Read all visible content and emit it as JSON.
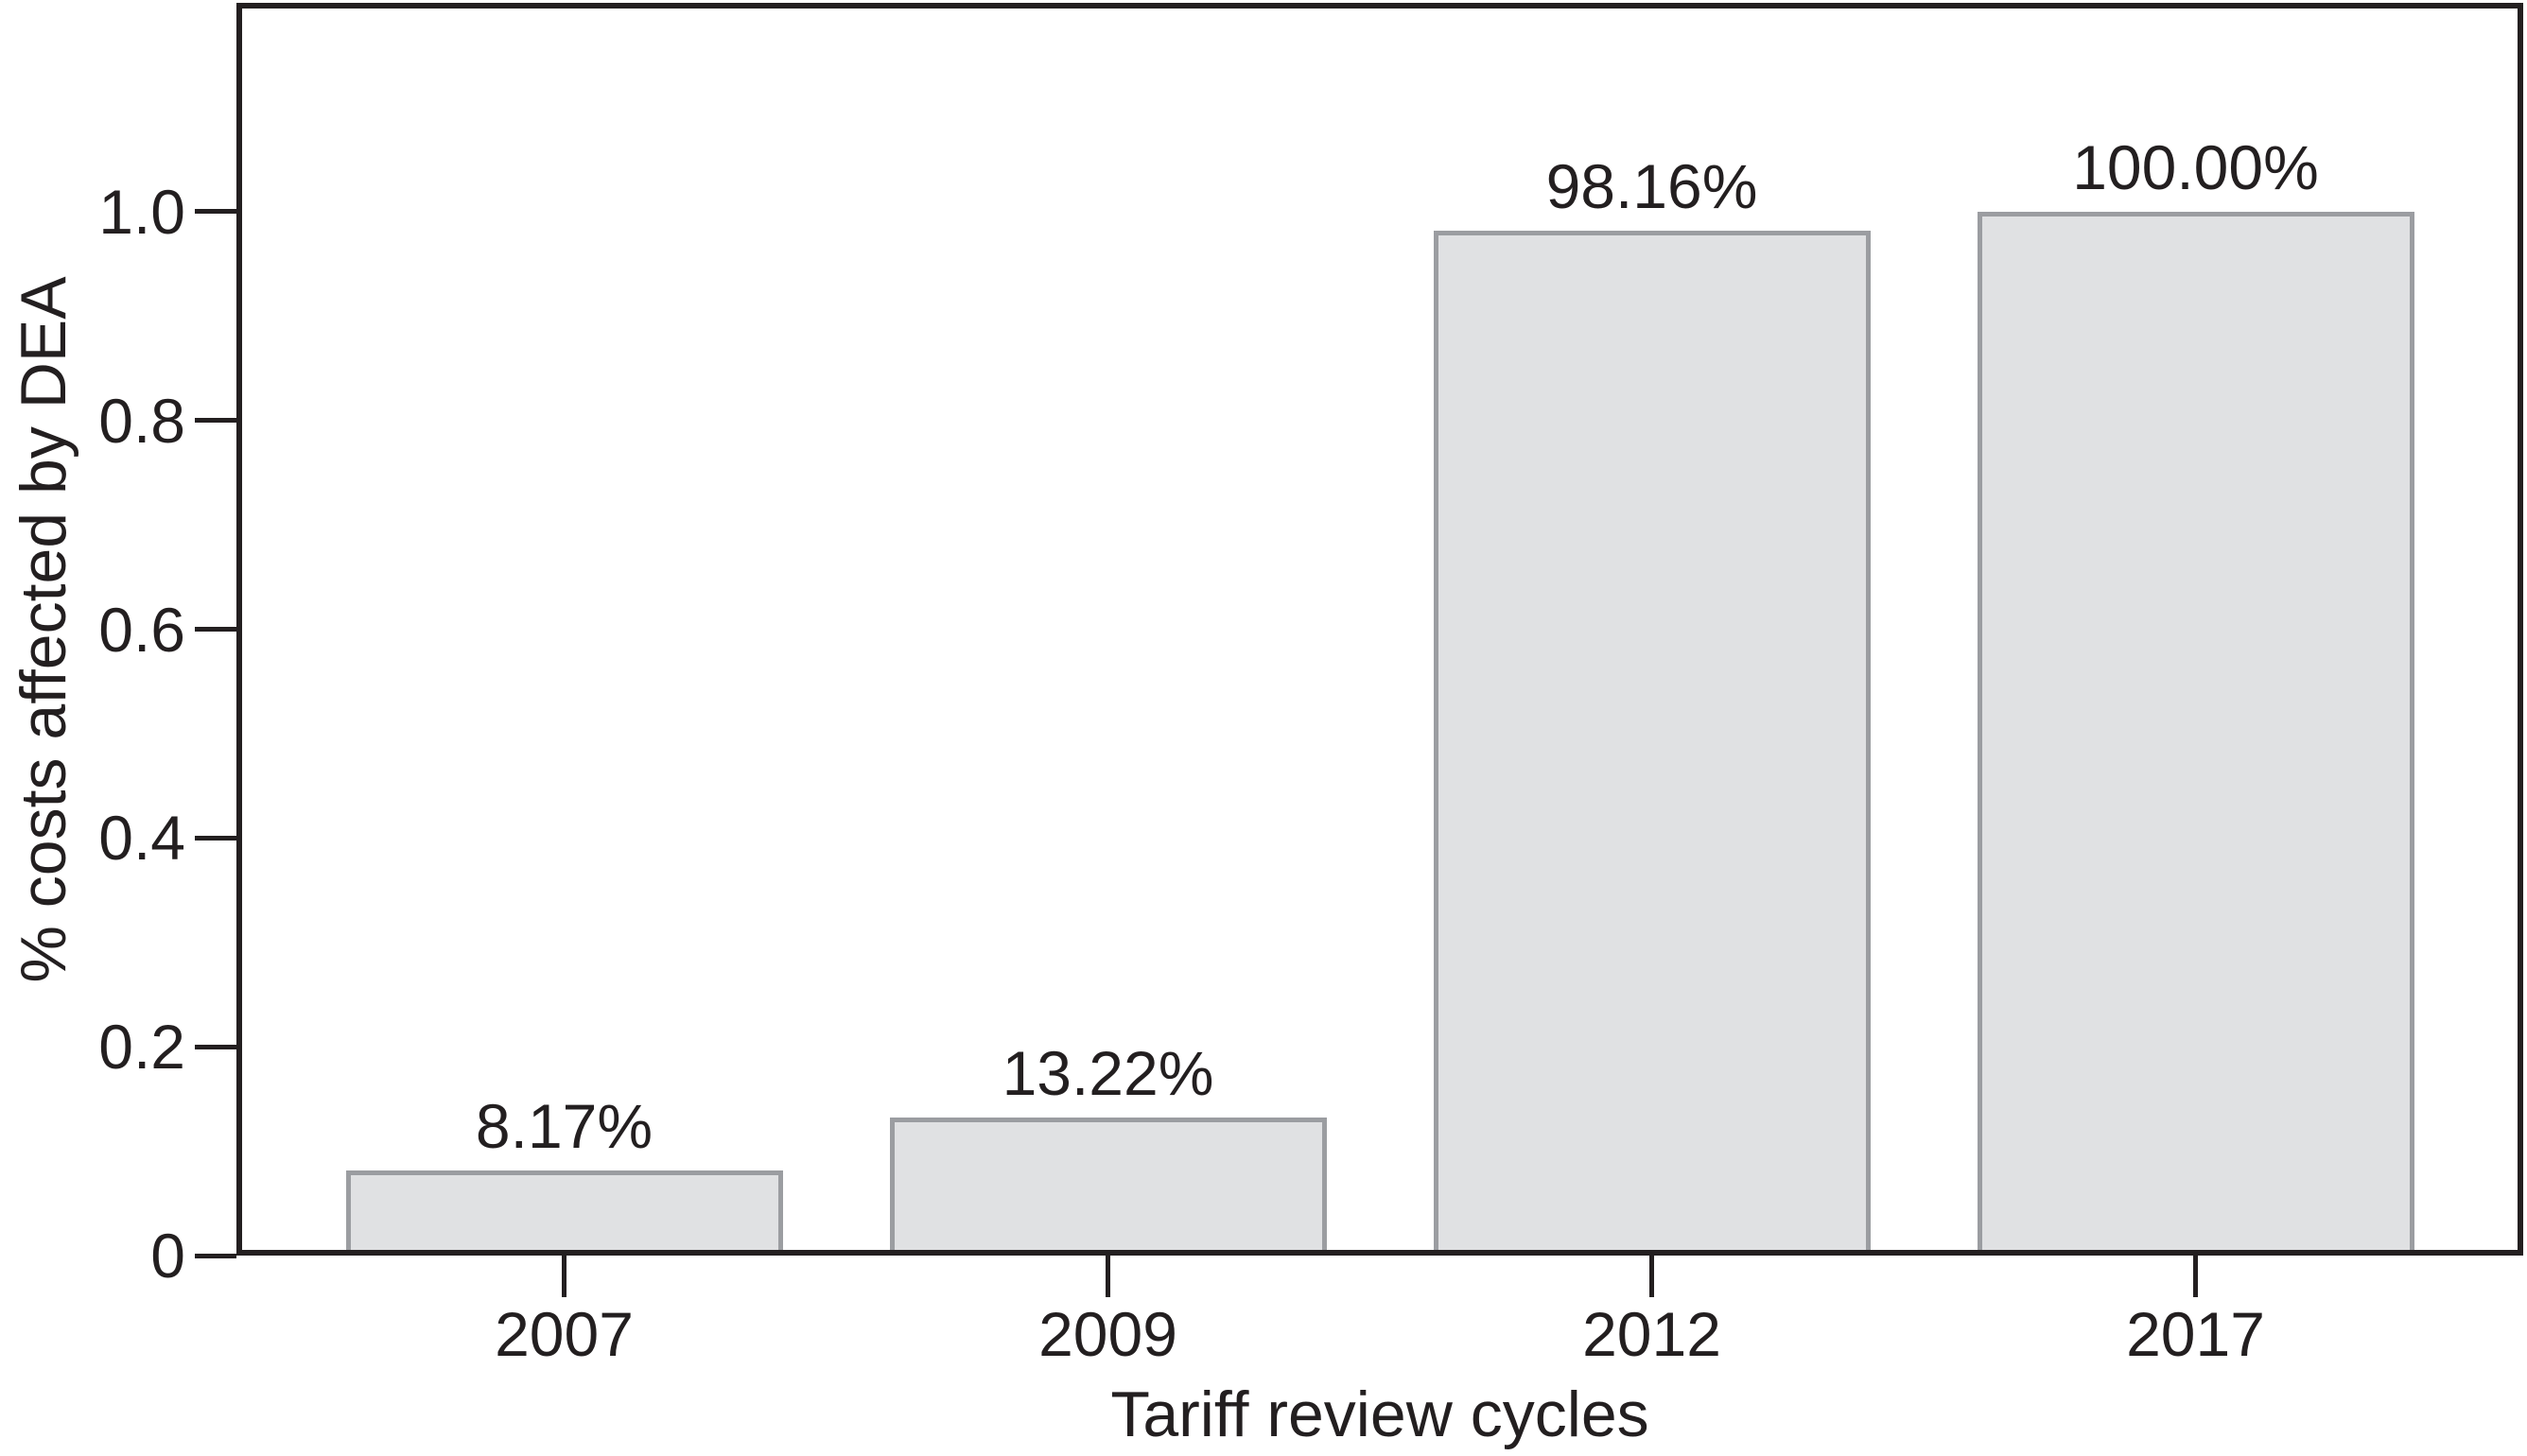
{
  "chart_data": {
    "type": "bar",
    "title": "",
    "xlabel": "Tariff review cycles",
    "ylabel": "% costs affected by DEA",
    "categories": [
      "2007",
      "2009",
      "2012",
      "2017"
    ],
    "values": [
      0.0817,
      0.1322,
      0.9816,
      1.0
    ],
    "bar_labels": [
      "8.17%",
      "13.22%",
      "98.16%",
      "100.00%"
    ],
    "ylim": [
      0,
      1.2
    ],
    "yticks": [
      {
        "value": 0.0,
        "label": "0"
      },
      {
        "value": 0.2,
        "label": "0.2"
      },
      {
        "value": 0.4,
        "label": "0.4"
      },
      {
        "value": 0.6,
        "label": "0.6"
      },
      {
        "value": 0.8,
        "label": "0.8"
      },
      {
        "value": 1.0,
        "label": "1.0"
      }
    ],
    "grid": false,
    "legend": null,
    "colors": {
      "background": "#ffffff",
      "bar_fill": "#e0e1e3",
      "bar_border": "#9b9da1",
      "axis": "#231f20",
      "text": "#231f20"
    }
  }
}
